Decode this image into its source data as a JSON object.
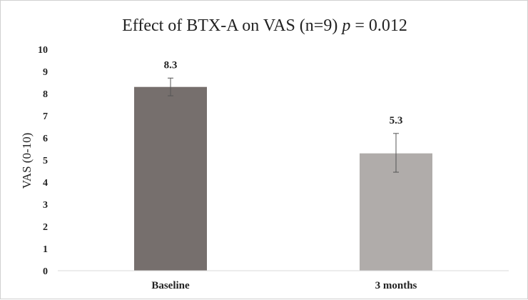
{
  "chart_data": {
    "type": "bar",
    "title": "Effect of BTX-A on VAS (n=9)",
    "title_p_symbol": "p",
    "title_p_value": " = 0.012",
    "ylabel": "VAS (0-10)",
    "xlabel": "",
    "categories": [
      "Baseline",
      "3 months"
    ],
    "values": [
      8.3,
      5.3
    ],
    "data_labels": [
      "8.3",
      "5.3"
    ],
    "error_low": [
      7.9,
      4.45
    ],
    "error_high": [
      8.7,
      6.2
    ],
    "ylim": [
      0,
      10
    ],
    "yticks": [
      "0",
      "1",
      "2",
      "3",
      "4",
      "5",
      "6",
      "7",
      "8",
      "9",
      "10"
    ],
    "grid": false,
    "legend": "none",
    "colors": [
      "#766f6d",
      "#b0acaa"
    ],
    "axis_color": "#d9d9d9",
    "error_bar_color": "#555555"
  }
}
